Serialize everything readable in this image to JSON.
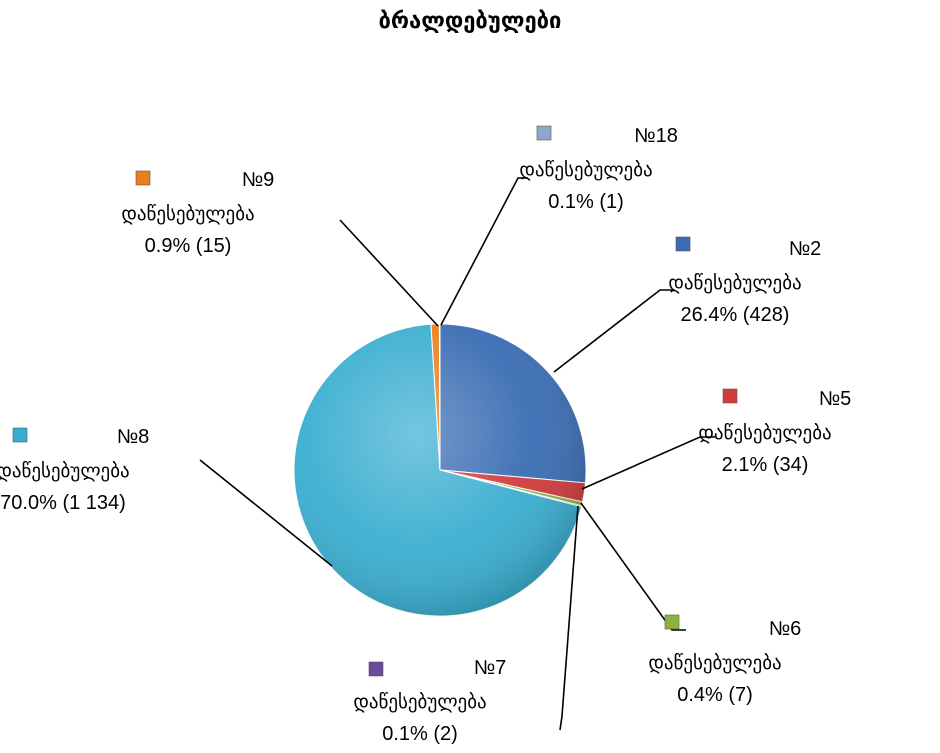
{
  "chart_data": {
    "type": "pie",
    "title": "ბრალდებულები",
    "slices": [
      {
        "name": "№2 დაწესებულება",
        "line1": "№2",
        "line2": "დაწესებულება",
        "percent_label": "26.4% (428)",
        "value": 428,
        "percent": 26.4,
        "color": "#3a6db3"
      },
      {
        "name": "№5 დაწესებულება",
        "line1": "№5",
        "line2": "დაწესებულება",
        "percent_label": "2.1% (34)",
        "value": 34,
        "percent": 2.1,
        "color": "#cf3c3c"
      },
      {
        "name": "№6 დაწესებულება",
        "line1": "№6",
        "line2": "დაწესებულება",
        "percent_label": "0.4% (7)",
        "value": 7,
        "percent": 0.4,
        "color": "#8fb33a"
      },
      {
        "name": "№7 დაწესებულება",
        "line1": "№7",
        "line2": "დაწესებულება",
        "percent_label": "0.1% (2)",
        "value": 2,
        "percent": 0.1,
        "color": "#6b4c9a"
      },
      {
        "name": "№8 დაწესებულება",
        "line1": "№8",
        "line2": "დაწესებულება",
        "percent_label": "70.0% (1 134)",
        "value": 1134,
        "percent": 70.0,
        "color": "#3aaed0"
      },
      {
        "name": "№9 დაწესებულება",
        "line1": "№9",
        "line2": "დაწესებულება",
        "percent_label": "0.9% (15)",
        "value": 15,
        "percent": 0.9,
        "color": "#e8801c"
      },
      {
        "name": "№18 დაწესებულება",
        "line1": "№18",
        "line2": "დაწესებულება",
        "percent_label": "0.1% (1)",
        "value": 1,
        "percent": 0.1,
        "color": "#8fa6c9"
      }
    ],
    "start_angle_deg": 0,
    "direction": "clockwise",
    "legend": "none"
  }
}
